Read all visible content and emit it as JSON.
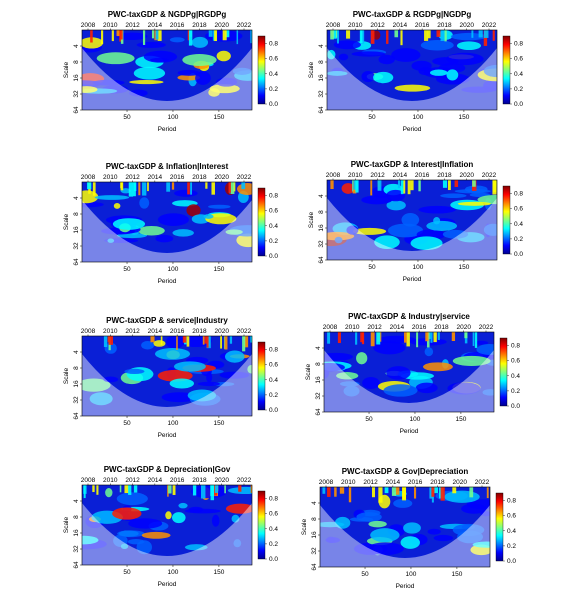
{
  "chart_data": [
    {
      "type": "heatmap",
      "title": "PWC-taxGDP & NGDPg|RGDPg",
      "xlabel": "Period",
      "ylabel": "Scale",
      "x_ticks": [
        50,
        100,
        150
      ],
      "top_ticks": [
        "2008",
        "2010",
        "2012",
        "2014",
        "2016",
        "2018",
        "2020",
        "2022"
      ],
      "y_ticks": [
        4,
        8,
        16,
        32,
        64
      ],
      "colorbar_ticks": [
        0.0,
        0.2,
        0.4,
        0.6,
        0.8
      ],
      "xlim": [
        1,
        186
      ],
      "ylim": [
        2,
        64
      ],
      "zlim": [
        0,
        0.9
      ]
    },
    {
      "type": "heatmap",
      "title": "PWC-taxGDP & RGDPg|NGDPg",
      "xlabel": "Period",
      "ylabel": "Scale",
      "x_ticks": [
        50,
        100,
        150
      ],
      "top_ticks": [
        "2008",
        "2010",
        "2012",
        "2014",
        "2016",
        "2018",
        "2020",
        "2022"
      ],
      "y_ticks": [
        4,
        8,
        16,
        32,
        64
      ],
      "colorbar_ticks": [
        0.0,
        0.2,
        0.4,
        0.6,
        0.8
      ],
      "xlim": [
        1,
        186
      ],
      "ylim": [
        2,
        64
      ],
      "zlim": [
        0,
        0.9
      ]
    },
    {
      "type": "heatmap",
      "title": "PWC-taxGDP & Inflation|Interest",
      "xlabel": "Period",
      "ylabel": "Scale",
      "x_ticks": [
        50,
        100,
        150
      ],
      "top_ticks": [
        "2008",
        "2010",
        "2012",
        "2014",
        "2016",
        "2018",
        "2020",
        "2022"
      ],
      "y_ticks": [
        4,
        8,
        16,
        32,
        64
      ],
      "colorbar_ticks": [
        0.0,
        0.2,
        0.4,
        0.6,
        0.8
      ],
      "xlim": [
        1,
        186
      ],
      "ylim": [
        2,
        64
      ],
      "zlim": [
        0,
        0.9
      ]
    },
    {
      "type": "heatmap",
      "title": "PWC-taxGDP & Interest|Inflation",
      "xlabel": "Period",
      "ylabel": "Scale",
      "x_ticks": [
        50,
        100,
        150
      ],
      "top_ticks": [
        "2008",
        "2010",
        "2012",
        "2014",
        "2016",
        "2018",
        "2020",
        "2022"
      ],
      "y_ticks": [
        4,
        8,
        16,
        32,
        64
      ],
      "colorbar_ticks": [
        0.0,
        0.2,
        0.4,
        0.6,
        0.8
      ],
      "xlim": [
        1,
        186
      ],
      "ylim": [
        2,
        64
      ],
      "zlim": [
        0,
        0.9
      ]
    },
    {
      "type": "heatmap",
      "title": "PWC-taxGDP & service|Industry",
      "xlabel": "Period",
      "ylabel": "Scale",
      "x_ticks": [
        50,
        100,
        150
      ],
      "top_ticks": [
        "2008",
        "2010",
        "2012",
        "2014",
        "2016",
        "2018",
        "2020",
        "2022"
      ],
      "y_ticks": [
        4,
        8,
        16,
        32,
        64
      ],
      "colorbar_ticks": [
        0.0,
        0.2,
        0.4,
        0.6,
        0.8
      ],
      "xlim": [
        1,
        186
      ],
      "ylim": [
        2,
        64
      ],
      "zlim": [
        0,
        0.9
      ]
    },
    {
      "type": "heatmap",
      "title": "PWC-taxGDP & Industry|service",
      "xlabel": "Period",
      "ylabel": "Scale",
      "x_ticks": [
        50,
        100,
        150
      ],
      "top_ticks": [
        "2008",
        "2010",
        "2012",
        "2014",
        "2016",
        "2018",
        "2020",
        "2022"
      ],
      "y_ticks": [
        4,
        8,
        16,
        32,
        64
      ],
      "colorbar_ticks": [
        0.0,
        0.2,
        0.4,
        0.6,
        0.8
      ],
      "xlim": [
        1,
        186
      ],
      "ylim": [
        2,
        64
      ],
      "zlim": [
        0,
        0.9
      ]
    },
    {
      "type": "heatmap",
      "title": "PWC-taxGDP & Depreciation|Gov",
      "xlabel": "Period",
      "ylabel": "Scale",
      "x_ticks": [
        50,
        100,
        150
      ],
      "top_ticks": [
        "2008",
        "2010",
        "2012",
        "2014",
        "2016",
        "2018",
        "2020",
        "2022"
      ],
      "y_ticks": [
        4,
        8,
        16,
        32,
        64
      ],
      "colorbar_ticks": [
        0.0,
        0.2,
        0.4,
        0.6,
        0.8
      ],
      "xlim": [
        1,
        186
      ],
      "ylim": [
        2,
        64
      ],
      "zlim": [
        0,
        0.9
      ]
    },
    {
      "type": "heatmap",
      "title": "PWC-taxGDP & Gov|Depreciation",
      "xlabel": "Period",
      "ylabel": "Scale",
      "x_ticks": [
        50,
        100,
        150
      ],
      "top_ticks": [
        "2008",
        "2010",
        "2012",
        "2014",
        "2016",
        "2018",
        "2020",
        "2022"
      ],
      "y_ticks": [
        4,
        8,
        16,
        32,
        64
      ],
      "colorbar_ticks": [
        0.0,
        0.2,
        0.4,
        0.6,
        0.8
      ],
      "xlim": [
        1,
        186
      ],
      "ylim": [
        2,
        64
      ],
      "zlim": [
        0,
        0.9
      ]
    }
  ],
  "palette": [
    "#00008f",
    "#0000ff",
    "#0080ff",
    "#00ffff",
    "#80ff80",
    "#ffff00",
    "#ff8000",
    "#ff0000",
    "#800000"
  ]
}
